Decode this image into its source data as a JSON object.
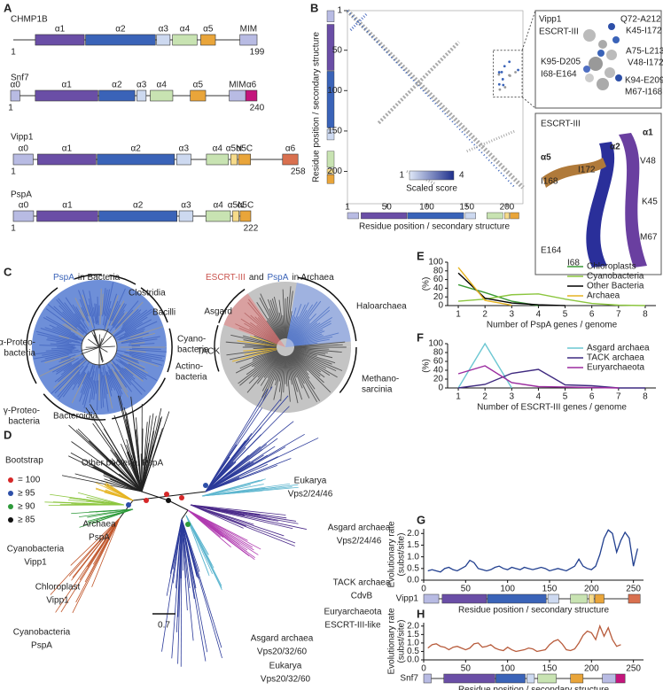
{
  "panels": {
    "A": {
      "label": "A",
      "proteins": [
        {
          "name": "CHMP1B",
          "start": 1,
          "end": 199,
          "domains": [
            "α1",
            "α2",
            "α3",
            "α4",
            "α5",
            "MIM"
          ]
        },
        {
          "name": "Snf7",
          "start": 1,
          "end": 240,
          "domains": [
            "α0",
            "α1",
            "α2",
            "α3",
            "α4",
            "α5",
            "MIM",
            "α6"
          ]
        },
        {
          "name": "Vipp1",
          "start": 1,
          "end": 258,
          "domains": [
            "α0",
            "α1",
            "α2",
            "α3",
            "α4",
            "α5N",
            "α5C",
            "α6"
          ]
        },
        {
          "name": "PspA",
          "start": 1,
          "end": 222,
          "domains": [
            "α0",
            "α1",
            "α2",
            "α3",
            "α4",
            "α5N",
            "α5C"
          ]
        }
      ]
    },
    "B": {
      "label": "B",
      "xlim": [
        1,
        220
      ],
      "ylim": [
        1,
        240
      ],
      "xticks": [
        1,
        50,
        100,
        150,
        200
      ],
      "yticks": [
        1,
        50,
        100,
        150,
        200
      ],
      "xlabel": "Residue position / secondary structure",
      "ylabel": "Residue position / secondary structure",
      "colorbar": {
        "min": 1,
        "max": 4,
        "label": "Scaled score"
      },
      "contacts": {
        "title": "Vipp1",
        "subtitle": "ESCRT-III",
        "pairs": [
          {
            "vipp1": "Q72-A212",
            "escrt": "K45-I172"
          },
          {
            "vipp1": "A75-L213",
            "escrt": "V48-I172"
          },
          {
            "vipp1": "K95-D205",
            "escrt": "I68-E164"
          },
          {
            "vipp1": "K94-E209",
            "escrt": "M67-I168"
          }
        ]
      },
      "structure": {
        "title": "ESCRT-III",
        "helices": [
          "α1",
          "α2",
          "α5"
        ],
        "residues": [
          "I168",
          "I172",
          "V48",
          "K45",
          "E164",
          "I68",
          "M67"
        ]
      }
    },
    "C": {
      "label": "C",
      "left": {
        "title": [
          "PspA",
          "in Bacteria"
        ],
        "clades": [
          [
            "α-Proteo-",
            "bacteria"
          ],
          [
            "Clostridia"
          ],
          [
            "Bacilli"
          ],
          [
            "Cyano-",
            "bacteria"
          ],
          [
            "Actino-",
            "bacteria"
          ],
          [
            "γ-Proteo-",
            "bacteria"
          ],
          [
            "Bacteroidia"
          ]
        ]
      },
      "right": {
        "title": [
          "ESCRT-III",
          "and",
          "PspA",
          "in Archaea"
        ],
        "clades": [
          [
            "Asgard"
          ],
          [
            "TACK"
          ],
          [
            "Haloarchaea"
          ],
          [
            "Methano-",
            "sarcinia"
          ]
        ]
      }
    },
    "D": {
      "label": "D",
      "bootstrap": {
        "title": "Bootstrap",
        "levels": [
          "= 100",
          "≥ 95",
          "≥ 90",
          "≥ 85"
        ]
      },
      "scale": 0.7,
      "clades": [
        [
          "Other bacterial PspA"
        ],
        [
          "Archaea",
          "PspA"
        ],
        [
          "Cyanobacteria",
          "Vipp1"
        ],
        [
          "Chloroplast",
          "Vipp1"
        ],
        [
          "Cyanobacteria",
          "PspA"
        ],
        [
          "Eukarya",
          "Vps2/24/46"
        ],
        [
          "Asgard archaea",
          "Vps2/24/46"
        ],
        [
          "TACK archaea",
          "CdvB"
        ],
        [
          "Euryarchaeota",
          "ESCRT-III-like"
        ],
        [
          "Asgard archaea",
          "Vps20/32/60"
        ],
        [
          "Eukarya",
          "Vps20/32/60"
        ]
      ]
    }
  },
  "chart_data": [
    {
      "panel": "E",
      "type": "line",
      "x": [
        1,
        2,
        3,
        4,
        5,
        6,
        7,
        8
      ],
      "xlim": [
        0.6,
        8.4
      ],
      "xticks": [
        1,
        2,
        3,
        4,
        5,
        6,
        7,
        8
      ],
      "ylim": [
        0,
        100
      ],
      "yticks": [
        0,
        20,
        40,
        60,
        80,
        100
      ],
      "ylabel": "(%)",
      "xlabel": "Number of PspA genes / genome",
      "legend": "top-right",
      "series": [
        {
          "name": "Chloroplasts",
          "color": "#3a9a35",
          "values": [
            48,
            30,
            10,
            0,
            null,
            null,
            null,
            null
          ]
        },
        {
          "name": "Cyanobacteria",
          "color": "#8cc63f",
          "values": [
            10,
            15,
            25,
            27,
            15,
            5,
            1,
            0
          ]
        },
        {
          "name": "Other Bacteria",
          "color": "#000000",
          "values": [
            75,
            17,
            6,
            2,
            0,
            null,
            null,
            null
          ]
        },
        {
          "name": "Archaea",
          "color": "#e6b422",
          "values": [
            88,
            12,
            1,
            null,
            null,
            null,
            null,
            null
          ]
        }
      ]
    },
    {
      "panel": "F",
      "type": "line",
      "x": [
        1,
        2,
        3,
        4,
        5,
        6,
        7,
        8
      ],
      "xlim": [
        0.6,
        8.4
      ],
      "xticks": [
        1,
        2,
        3,
        4,
        5,
        6,
        7,
        8
      ],
      "ylim": [
        0,
        100
      ],
      "yticks": [
        0,
        20,
        40,
        60,
        80,
        100
      ],
      "ylabel": "(%)",
      "xlabel": "Number of ESCRT-III genes / genome",
      "legend": "top-right",
      "series": [
        {
          "name": "Asgard archaea",
          "color": "#6cc7d2",
          "values": [
            0,
            100,
            0,
            null,
            null,
            null,
            null,
            null
          ]
        },
        {
          "name": "TACK archaea",
          "color": "#3f2a80",
          "values": [
            0,
            8,
            33,
            42,
            7,
            5,
            0,
            0
          ]
        },
        {
          "name": "Euryarchaeota",
          "color": "#9b2c9f",
          "values": [
            32,
            50,
            12,
            3,
            2,
            1,
            0,
            null
          ]
        }
      ]
    },
    {
      "panel": "G",
      "type": "line",
      "protein": "Vipp1",
      "color": "#213f8f",
      "x": [
        5,
        10,
        15,
        20,
        25,
        30,
        35,
        40,
        45,
        50,
        55,
        60,
        65,
        70,
        75,
        80,
        85,
        90,
        95,
        100,
        105,
        110,
        115,
        120,
        125,
        130,
        135,
        140,
        145,
        150,
        155,
        160,
        165,
        170,
        175,
        180,
        185,
        190,
        195,
        200,
        205,
        210,
        215,
        220,
        225,
        230,
        235,
        240,
        245,
        250,
        255
      ],
      "values": [
        0.4,
        0.45,
        0.4,
        0.35,
        0.5,
        0.55,
        0.45,
        0.4,
        0.5,
        0.6,
        0.85,
        0.75,
        0.5,
        0.45,
        0.4,
        0.45,
        0.55,
        0.6,
        0.5,
        0.45,
        0.55,
        0.5,
        0.45,
        0.55,
        0.5,
        0.45,
        0.5,
        0.55,
        0.5,
        0.4,
        0.45,
        0.5,
        0.45,
        0.4,
        0.5,
        0.6,
        0.9,
        0.6,
        0.5,
        0.45,
        0.6,
        1.1,
        1.8,
        2.15,
        2.0,
        1.2,
        1.7,
        2.05,
        1.8,
        0.6,
        1.35
      ],
      "xlim": [
        0,
        262
      ],
      "xticks": [
        0,
        50,
        100,
        150,
        200,
        250
      ],
      "ylim": [
        0,
        2.2
      ],
      "yticks": [
        {
          "value": 0,
          "label": "0.0"
        },
        0.5,
        {
          "value": 1,
          "label": "1.0"
        },
        1.5,
        {
          "value": 2,
          "label": "2.0"
        }
      ],
      "ylabel": [
        "Evolutionary rate",
        "(subst/site)"
      ],
      "xlabel": "Residue position / secondary structure"
    },
    {
      "panel": "H",
      "type": "line",
      "protein": "Snf7",
      "color": "#b85c3c",
      "x": [
        5,
        10,
        15,
        20,
        25,
        30,
        35,
        40,
        45,
        50,
        55,
        60,
        65,
        70,
        75,
        80,
        85,
        90,
        95,
        100,
        105,
        110,
        115,
        120,
        125,
        130,
        135,
        140,
        145,
        150,
        155,
        160,
        165,
        170,
        175,
        180,
        185,
        190,
        195,
        200,
        205,
        210,
        215,
        220,
        225,
        230,
        235
      ],
      "values": [
        0.7,
        0.9,
        0.95,
        0.8,
        0.75,
        0.6,
        0.75,
        0.8,
        0.7,
        0.6,
        0.7,
        0.95,
        1.0,
        0.75,
        0.8,
        0.9,
        0.7,
        0.6,
        0.55,
        0.75,
        0.6,
        0.5,
        0.55,
        0.6,
        0.7,
        0.65,
        0.5,
        0.55,
        0.6,
        0.9,
        1.1,
        1.2,
        0.95,
        0.6,
        0.55,
        0.65,
        1.0,
        1.45,
        1.7,
        1.6,
        1.2,
        2.0,
        1.4,
        1.9,
        1.2,
        0.8,
        0.9
      ],
      "xlim": [
        0,
        262
      ],
      "xticks": [
        0,
        50,
        100,
        150,
        200,
        250
      ],
      "ylim": [
        0,
        2.2
      ],
      "yticks": [
        {
          "value": 0,
          "label": "0.0"
        },
        0.5,
        {
          "value": 1,
          "label": "1.0"
        },
        1.5,
        {
          "value": 2,
          "label": "2.0"
        }
      ],
      "ylabel": [
        "Evolutionary rate",
        "(subst/site)"
      ],
      "xlabel": "Residue position / secondary structure"
    }
  ]
}
